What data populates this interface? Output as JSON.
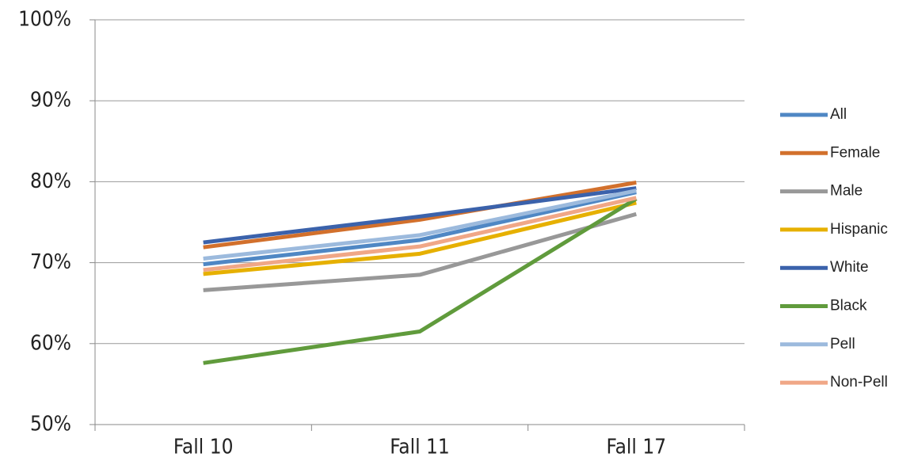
{
  "chart_data": {
    "type": "line",
    "categories": [
      "Fall 10",
      "Fall 11",
      "Fall 17"
    ],
    "series": [
      {
        "name": "All",
        "color": "#4f87c4",
        "values": [
          69.8,
          72.8,
          78.7
        ]
      },
      {
        "name": "Female",
        "color": "#d2702c",
        "values": [
          71.9,
          75.3,
          79.9
        ]
      },
      {
        "name": "Male",
        "color": "#989898",
        "values": [
          66.6,
          68.5,
          76.0
        ]
      },
      {
        "name": "Hispanic",
        "color": "#e6b000",
        "values": [
          68.6,
          71.1,
          77.4
        ]
      },
      {
        "name": "White",
        "color": "#3b62ab",
        "values": [
          72.5,
          75.7,
          79.2
        ]
      },
      {
        "name": "Black",
        "color": "#609b3c",
        "values": [
          57.6,
          61.5,
          77.9
        ]
      },
      {
        "name": "Pell",
        "color": "#9cbadd",
        "values": [
          70.5,
          73.4,
          78.9
        ]
      },
      {
        "name": "Non-Pell",
        "color": "#f0a787",
        "values": [
          69.1,
          72.0,
          78.0
        ]
      }
    ],
    "ylim": [
      50,
      100
    ],
    "yticks": [
      {
        "value": 50,
        "label": "50%"
      },
      {
        "value": 60,
        "label": "60%"
      },
      {
        "value": 70,
        "label": "70%"
      },
      {
        "value": 80,
        "label": "80%"
      },
      {
        "value": 90,
        "label": "90%"
      },
      {
        "value": 100,
        "label": "100%"
      }
    ],
    "grid": true,
    "legend": "right"
  }
}
